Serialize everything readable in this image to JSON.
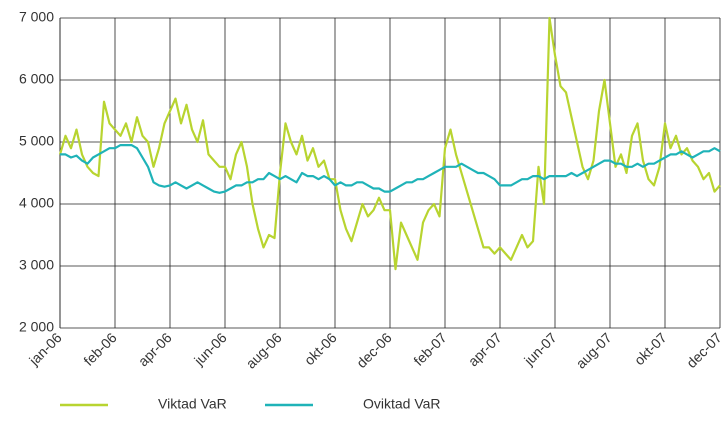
{
  "chart_data": {
    "type": "line",
    "categories": [
      "jan-06",
      null,
      null,
      null,
      null,
      null,
      null,
      null,
      null,
      null,
      "feb-06",
      null,
      null,
      null,
      null,
      null,
      null,
      null,
      null,
      null,
      "apr-06",
      null,
      null,
      null,
      null,
      null,
      null,
      null,
      null,
      null,
      "jun-06",
      null,
      null,
      null,
      null,
      null,
      null,
      null,
      null,
      null,
      "aug-06",
      null,
      null,
      null,
      null,
      null,
      null,
      null,
      null,
      null,
      "okt-06",
      null,
      null,
      null,
      null,
      null,
      null,
      null,
      null,
      null,
      "dec-06",
      null,
      null,
      null,
      null,
      null,
      null,
      null,
      null,
      null,
      "feb-07",
      null,
      null,
      null,
      null,
      null,
      null,
      null,
      null,
      null,
      "apr-07",
      null,
      null,
      null,
      null,
      null,
      null,
      null,
      null,
      null,
      "jun-07",
      null,
      null,
      null,
      null,
      null,
      null,
      null,
      null,
      null,
      "aug-07",
      null,
      null,
      null,
      null,
      null,
      null,
      null,
      null,
      null,
      "okt-07",
      null,
      null,
      null,
      null,
      null,
      null,
      null,
      null,
      null,
      "dec-07"
    ],
    "series": [
      {
        "name": "Viktad VaR",
        "color": "#b8d430",
        "values": [
          4800,
          5100,
          4900,
          5200,
          4800,
          4600,
          4500,
          4450,
          5650,
          5300,
          5200,
          5100,
          5300,
          5000,
          5400,
          5100,
          5000,
          4600,
          4900,
          5300,
          5500,
          5700,
          5300,
          5600,
          5200,
          5000,
          5350,
          4800,
          4700,
          4600,
          4600,
          4400,
          4800,
          5000,
          4600,
          4000,
          3600,
          3300,
          3500,
          3450,
          4500,
          5300,
          5000,
          4800,
          5100,
          4700,
          4900,
          4600,
          4700,
          4400,
          4400,
          3900,
          3600,
          3400,
          3700,
          4000,
          3800,
          3900,
          4100,
          3900,
          3900,
          2950,
          3700,
          3500,
          3300,
          3100,
          3700,
          3900,
          4000,
          3800,
          4900,
          5200,
          4800,
          4500,
          4200,
          3900,
          3600,
          3300,
          3300,
          3200,
          3300,
          3200,
          3100,
          3300,
          3500,
          3300,
          3400,
          4600,
          4000,
          7000,
          6400,
          5900,
          5800,
          5400,
          5000,
          4600,
          4400,
          4700,
          5500,
          6000,
          5300,
          4600,
          4800,
          4500,
          5100,
          5300,
          4700,
          4400,
          4300,
          4600,
          5300,
          4900,
          5100,
          4800,
          4900,
          4700,
          4600,
          4400,
          4500,
          4200,
          4300
        ]
      },
      {
        "name": "Oviktad VaR",
        "color": "#1fb3b8",
        "values": [
          4800,
          4800,
          4750,
          4780,
          4700,
          4650,
          4750,
          4800,
          4850,
          4900,
          4900,
          4950,
          4950,
          4950,
          4900,
          4750,
          4600,
          4350,
          4300,
          4280,
          4300,
          4350,
          4300,
          4250,
          4300,
          4350,
          4300,
          4250,
          4200,
          4180,
          4200,
          4250,
          4300,
          4300,
          4350,
          4350,
          4400,
          4400,
          4500,
          4450,
          4400,
          4450,
          4400,
          4350,
          4500,
          4450,
          4450,
          4400,
          4450,
          4400,
          4300,
          4350,
          4300,
          4300,
          4350,
          4350,
          4300,
          4250,
          4250,
          4200,
          4200,
          4250,
          4300,
          4350,
          4350,
          4400,
          4400,
          4450,
          4500,
          4550,
          4600,
          4600,
          4600,
          4650,
          4600,
          4550,
          4500,
          4500,
          4450,
          4400,
          4300,
          4300,
          4300,
          4350,
          4400,
          4400,
          4450,
          4450,
          4400,
          4450,
          4450,
          4450,
          4450,
          4500,
          4450,
          4500,
          4550,
          4600,
          4650,
          4700,
          4700,
          4650,
          4650,
          4600,
          4600,
          4650,
          4600,
          4650,
          4650,
          4700,
          4750,
          4800,
          4800,
          4850,
          4800,
          4750,
          4800,
          4850,
          4850,
          4900,
          4850
        ]
      }
    ],
    "ylim": [
      2000,
      7000
    ],
    "yticks": [
      {
        "value": 2000,
        "label": "2 000"
      },
      {
        "value": 3000,
        "label": "3 000"
      },
      {
        "value": 4000,
        "label": "4 000"
      },
      {
        "value": 5000,
        "label": "5 000"
      },
      {
        "value": 6000,
        "label": "6 000"
      },
      {
        "value": 7000,
        "label": "7 000"
      }
    ],
    "grid": true
  }
}
